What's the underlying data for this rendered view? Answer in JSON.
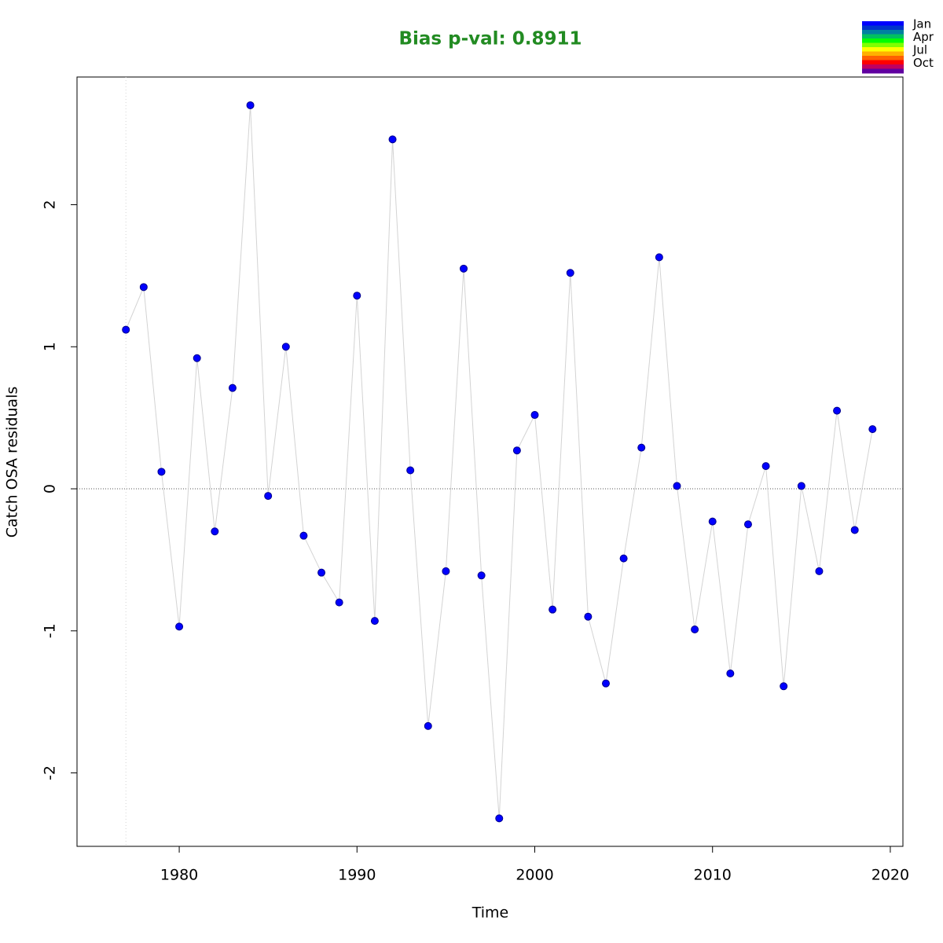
{
  "chart_data": {
    "type": "line",
    "title": "Bias p-val: 0.8911",
    "title_color": "#228b22",
    "xlabel": "Time",
    "ylabel": "Catch OSA residuals",
    "x": [
      1977,
      1978,
      1979,
      1980,
      1981,
      1982,
      1983,
      1984,
      1985,
      1986,
      1987,
      1988,
      1989,
      1990,
      1991,
      1992,
      1993,
      1994,
      1995,
      1996,
      1997,
      1998,
      1999,
      2000,
      2001,
      2002,
      2003,
      2004,
      2005,
      2006,
      2007,
      2008,
      2009,
      2010,
      2011,
      2012,
      2013,
      2014,
      2015,
      2016,
      2017,
      2018,
      2019
    ],
    "series": [
      {
        "color": "#0000ff",
        "line_color": "#d3d3d3",
        "values": [
          1.12,
          1.42,
          0.12,
          -0.97,
          0.92,
          -0.3,
          0.71,
          2.7,
          -0.05,
          1.0,
          -0.33,
          -0.59,
          -0.8,
          1.36,
          -0.93,
          2.46,
          0.13,
          -1.67,
          -0.58,
          1.55,
          -0.61,
          -2.32,
          0.27,
          0.52,
          -0.85,
          1.52,
          -0.9,
          -1.37,
          -0.49,
          0.29,
          1.63,
          0.02,
          -0.99,
          -0.23,
          -1.3,
          -0.25,
          0.16,
          -1.39,
          0.02,
          -0.58,
          0.55,
          -0.29,
          0.42
        ]
      }
    ],
    "xlim": [
      1974.25,
      2020.71
    ],
    "ylim": [
      -2.517,
      2.899
    ],
    "xticks": [
      1980,
      1990,
      2000,
      2010,
      2020
    ],
    "yticks": [
      -2,
      -1,
      0,
      1,
      2
    ],
    "hline": 0,
    "vline": 1977,
    "legend": {
      "labels": [
        "Jan",
        "Apr",
        "Jul",
        "Oct"
      ],
      "colors": [
        "#0000ff",
        "#0033cc",
        "#0080a0",
        "#00c060",
        "#00ff00",
        "#80ff00",
        "#ffff00",
        "#ffb000",
        "#ff6000",
        "#ff0000",
        "#c00060",
        "#6000a0"
      ]
    }
  }
}
